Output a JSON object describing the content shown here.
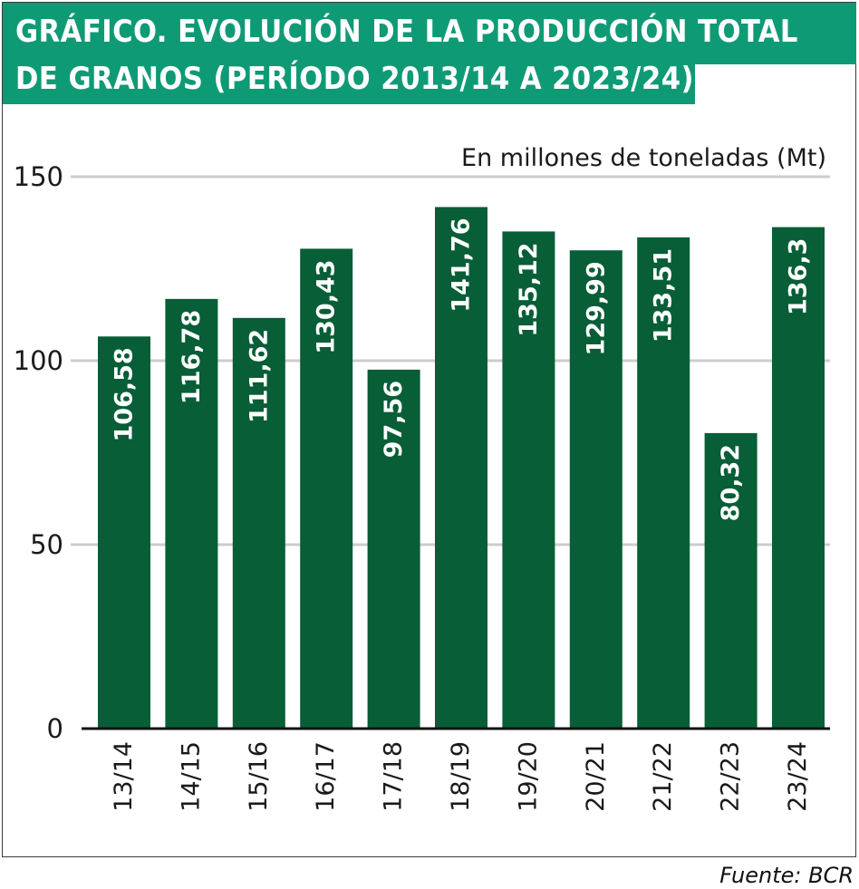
{
  "title": {
    "line1": "GRÁFICO. EVOLUCIÓN DE LA PRODUCCIÓN TOTAL",
    "line2": "DE GRANOS (PERÍODO 2013/14 A 2023/24)"
  },
  "colors": {
    "banner": "#0f9a76",
    "bar": "#075e37",
    "grid": "#cccccc",
    "axis": "#111111"
  },
  "source": "Fuente: BCR",
  "chart_data": {
    "type": "bar",
    "unit_label": "En millones de toneladas (Mt)",
    "categories": [
      "13/14",
      "14/15",
      "15/16",
      "16/17",
      "17/18",
      "18/19",
      "19/20",
      "20/21",
      "21/22",
      "22/23",
      "23/24"
    ],
    "values": [
      106.58,
      116.78,
      111.62,
      130.43,
      97.56,
      141.76,
      135.12,
      129.99,
      133.51,
      80.32,
      136.3
    ],
    "value_labels": [
      "106,58",
      "116,78",
      "111,62",
      "130,43",
      "97,56",
      "141,76",
      "135,12",
      "129,99",
      "133,51",
      "80,32",
      "136,3"
    ],
    "ylim": [
      0,
      150
    ],
    "yticks": [
      0,
      50,
      100,
      150
    ],
    "grid": true,
    "legend": false
  }
}
